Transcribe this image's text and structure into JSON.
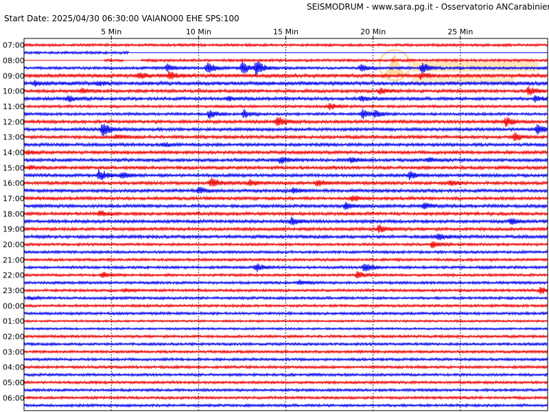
{
  "header": {
    "title": "SEISMODRUM - www.sara.pg.it - Osservatorio ANCarabinieri",
    "start_date": "Start Date: 2025/04/30 06:30:00 VAIANO00 EHE  SPS:100"
  },
  "colors": {
    "trace_a": "#0000ee",
    "trace_b": "#ee0000",
    "frame": "#000000",
    "grid": "#000000",
    "watermark": "#f5a000"
  },
  "chart_data": {
    "type": "line",
    "title": "",
    "xlabel": "",
    "ylabel": "",
    "x_unit": "Min",
    "xlim": [
      0,
      30
    ],
    "x_ticks": [
      {
        "value": 5,
        "label": "5 Min"
      },
      {
        "value": 10,
        "label": "10 Min"
      },
      {
        "value": 15,
        "label": "15 Min"
      },
      {
        "value": 20,
        "label": "20 Min"
      },
      {
        "value": 25,
        "label": "25 Min"
      }
    ],
    "grid": "vertical-dashed",
    "line_colors": [
      "#0000ee",
      "#ee0000"
    ],
    "hour_labels": [
      "07:00",
      "08:00",
      "09:00",
      "10:00",
      "11:00",
      "12:00",
      "13:00",
      "14:00",
      "15:00",
      "16:00",
      "17:00",
      "18:00",
      "19:00",
      "20:00",
      "21:00",
      "22:00",
      "23:00",
      "00:00",
      "01:00",
      "02:00",
      "03:00",
      "04:00",
      "05:00",
      "06:00"
    ],
    "noise_level": [
      2.5,
      2.5,
      3.5,
      3,
      2.5,
      3,
      3,
      3,
      3,
      3,
      3,
      3,
      3,
      2.5,
      2.5,
      2.5,
      2.5,
      2.5,
      2,
      2.5,
      2.5,
      2.5,
      2.5,
      2.5
    ],
    "gaps": [
      {
        "line": 1,
        "from": 6,
        "to": 30
      },
      {
        "line": 2,
        "from": 0,
        "to": 4.6
      },
      {
        "line": 2,
        "from": 5.7,
        "to": 6.7
      }
    ],
    "events": [
      {
        "line": 3,
        "t": 10.5,
        "amp": 14
      },
      {
        "line": 3,
        "t": 12.5,
        "amp": 16
      },
      {
        "line": 3,
        "t": 13.3,
        "amp": 18
      },
      {
        "line": 3,
        "t": 8.2,
        "amp": 9
      },
      {
        "line": 3,
        "t": 19.3,
        "amp": 9
      },
      {
        "line": 3,
        "t": 22.8,
        "amp": 14
      },
      {
        "line": 4,
        "t": 8.3,
        "amp": 10
      },
      {
        "line": 4,
        "t": 6.6,
        "amp": 7
      },
      {
        "line": 4,
        "t": 22.7,
        "amp": 9
      },
      {
        "line": 5,
        "t": 0.6,
        "amp": 6
      },
      {
        "line": 5,
        "t": 4.2,
        "amp": 5
      },
      {
        "line": 6,
        "t": 3.3,
        "amp": 6
      },
      {
        "line": 6,
        "t": 20.4,
        "amp": 8
      },
      {
        "line": 6,
        "t": 28.9,
        "amp": 10
      },
      {
        "line": 7,
        "t": 2.5,
        "amp": 7
      },
      {
        "line": 7,
        "t": 11.7,
        "amp": 6
      },
      {
        "line": 7,
        "t": 19.3,
        "amp": 6
      },
      {
        "line": 7,
        "t": 29.3,
        "amp": 8
      },
      {
        "line": 8,
        "t": 17.5,
        "amp": 9
      },
      {
        "line": 9,
        "t": 10.6,
        "amp": 10
      },
      {
        "line": 9,
        "t": 12.6,
        "amp": 10
      },
      {
        "line": 9,
        "t": 19.4,
        "amp": 11
      },
      {
        "line": 9,
        "t": 20.1,
        "amp": 8
      },
      {
        "line": 10,
        "t": 14.5,
        "amp": 14
      },
      {
        "line": 10,
        "t": 27.6,
        "amp": 13
      },
      {
        "line": 11,
        "t": 29.4,
        "amp": 13
      },
      {
        "line": 11,
        "t": 4.5,
        "amp": 18
      },
      {
        "line": 12,
        "t": 5.3,
        "amp": 6
      },
      {
        "line": 12,
        "t": 28.1,
        "amp": 10
      },
      {
        "line": 13,
        "t": 8.0,
        "amp": 5
      },
      {
        "line": 14,
        "t": 0.2,
        "amp": 4
      },
      {
        "line": 15,
        "t": 14.7,
        "amp": 9
      },
      {
        "line": 15,
        "t": 18.7,
        "amp": 7
      },
      {
        "line": 15,
        "t": 23.2,
        "amp": 6
      },
      {
        "line": 16,
        "t": 0.3,
        "amp": 5
      },
      {
        "line": 17,
        "t": 4.3,
        "amp": 16
      },
      {
        "line": 17,
        "t": 5.6,
        "amp": 9
      },
      {
        "line": 17,
        "t": 22.1,
        "amp": 11
      },
      {
        "line": 18,
        "t": 10.7,
        "amp": 14
      },
      {
        "line": 18,
        "t": 12.9,
        "amp": 8
      },
      {
        "line": 18,
        "t": 16.8,
        "amp": 10
      },
      {
        "line": 18,
        "t": 24.4,
        "amp": 6
      },
      {
        "line": 19,
        "t": 10.0,
        "amp": 9
      },
      {
        "line": 19,
        "t": 15.4,
        "amp": 7
      },
      {
        "line": 20,
        "t": 18.8,
        "amp": 8
      },
      {
        "line": 21,
        "t": 18.4,
        "amp": 9
      },
      {
        "line": 21,
        "t": 22.9,
        "amp": 9
      },
      {
        "line": 22,
        "t": 4.3,
        "amp": 8
      },
      {
        "line": 23,
        "t": 15.3,
        "amp": 9
      },
      {
        "line": 23,
        "t": 27.9,
        "amp": 8
      },
      {
        "line": 24,
        "t": 20.3,
        "amp": 10
      },
      {
        "line": 25,
        "t": 23.7,
        "amp": 9
      },
      {
        "line": 26,
        "t": 23.4,
        "amp": 10
      },
      {
        "line": 29,
        "t": 13.3,
        "amp": 10
      },
      {
        "line": 29,
        "t": 19.5,
        "amp": 14
      },
      {
        "line": 30,
        "t": 4.5,
        "amp": 7
      },
      {
        "line": 30,
        "t": 19.1,
        "amp": 10
      },
      {
        "line": 31,
        "t": 15.8,
        "amp": 6
      },
      {
        "line": 32,
        "t": 5.8,
        "amp": 4
      },
      {
        "line": 32,
        "t": 29.6,
        "amp": 9
      },
      {
        "line": 33,
        "t": 0.3,
        "amp": 4
      }
    ]
  }
}
